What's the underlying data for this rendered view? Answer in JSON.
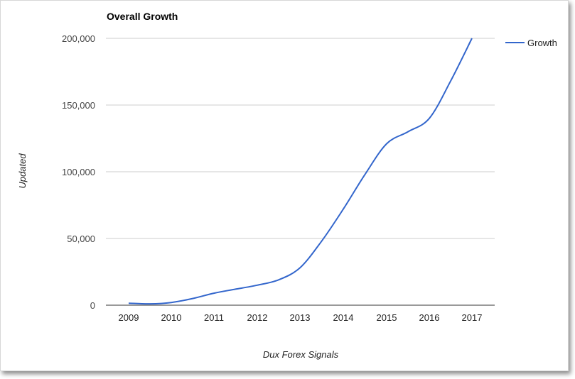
{
  "chart_data": {
    "type": "line",
    "title": "Overall Growth",
    "xlabel": "Dux Forex Signals",
    "ylabel": "Updated",
    "x_ticks": [
      "2009",
      "2010",
      "2011",
      "2012",
      "2013",
      "2014",
      "2015",
      "2016",
      "2017"
    ],
    "y_ticks": [
      "0",
      "50,000",
      "100,000",
      "150,000",
      "200,000"
    ],
    "ylim": [
      0,
      200000
    ],
    "grid": true,
    "legend_position": "right",
    "series": [
      {
        "name": "Growth",
        "color": "#3366cc",
        "x": [
          2009,
          2009.5,
          2010,
          2010.5,
          2011,
          2011.5,
          2012,
          2012.5,
          2013,
          2013.5,
          2014,
          2014.5,
          2015,
          2015.5,
          2016,
          2016.5,
          2017
        ],
        "y": [
          1500,
          1000,
          2000,
          5000,
          9000,
          12000,
          15000,
          19000,
          28000,
          48000,
          72000,
          98000,
          121000,
          130000,
          140000,
          168000,
          200000
        ]
      }
    ]
  }
}
